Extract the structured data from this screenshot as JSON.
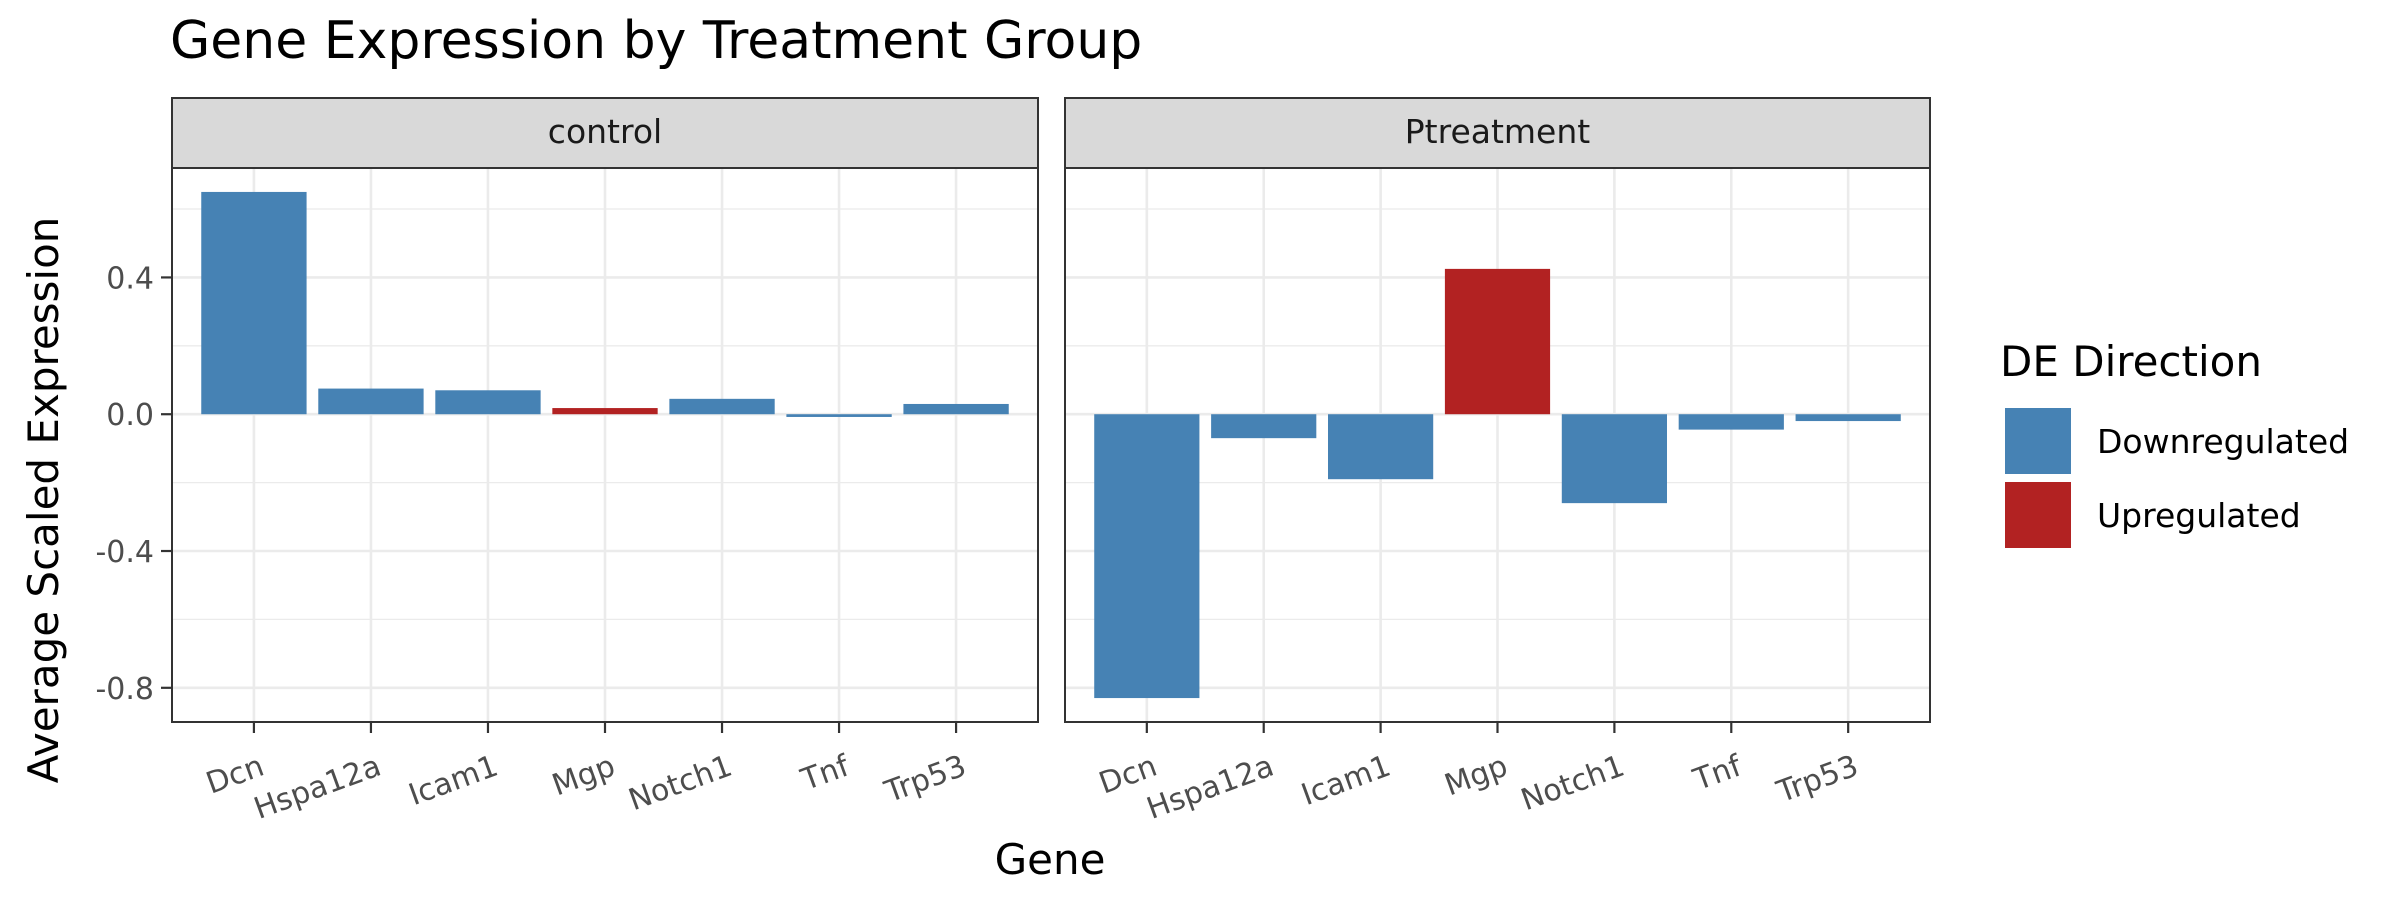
{
  "chart_data": {
    "type": "bar",
    "title": "Gene Expression by Treatment Group",
    "xlabel": "Gene",
    "ylabel": "Average Scaled Expression",
    "categories": [
      "Dcn",
      "Hspa12a",
      "Icam1",
      "Mgp",
      "Notch1",
      "Tnf",
      "Trp53"
    ],
    "ylim": [
      -0.9,
      0.72
    ],
    "yticks": [
      0.4,
      0.0,
      -0.4,
      -0.8
    ],
    "ytick_labels": [
      "0.4",
      "0.0",
      "-0.4",
      "-0.8"
    ],
    "grid": true,
    "facets": [
      {
        "label": "control",
        "values": [
          0.65,
          0.075,
          0.07,
          0.018,
          0.045,
          -0.008,
          0.03
        ],
        "direction": [
          "Downregulated",
          "Downregulated",
          "Downregulated",
          "Upregulated",
          "Downregulated",
          "Downregulated",
          "Downregulated"
        ]
      },
      {
        "label": "Ptreatment",
        "values": [
          -0.83,
          -0.07,
          -0.19,
          0.425,
          -0.26,
          -0.045,
          -0.02
        ],
        "direction": [
          "Downregulated",
          "Downregulated",
          "Downregulated",
          "Upregulated",
          "Downregulated",
          "Downregulated",
          "Downregulated"
        ]
      }
    ],
    "legend": {
      "title": "DE Direction",
      "position": "right",
      "items": [
        {
          "name": "Downregulated",
          "color": "#4682b4"
        },
        {
          "name": "Upregulated",
          "color": "#b22222"
        }
      ]
    }
  }
}
